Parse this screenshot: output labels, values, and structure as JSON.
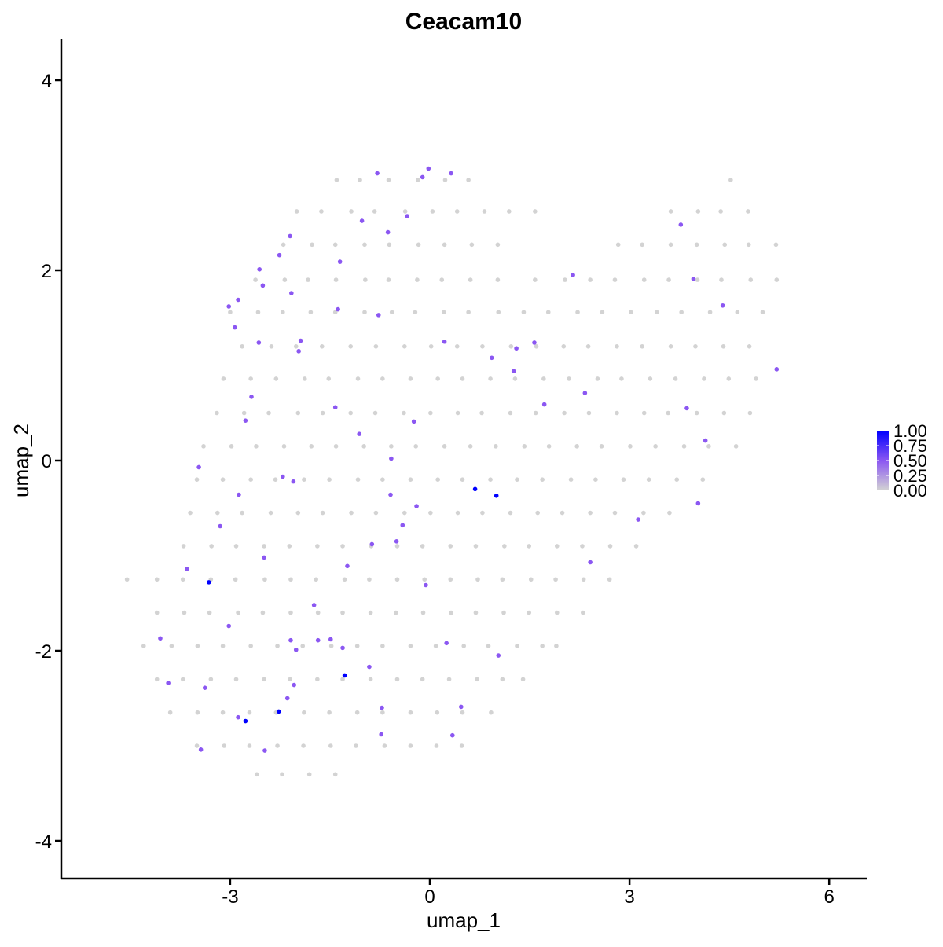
{
  "chart_data": {
    "type": "scatter",
    "title": "Ceacam10",
    "xlabel": "umap_1",
    "ylabel": "umap_2",
    "xlim": [
      -5.4,
      6.7
    ],
    "ylim": [
      -4.4,
      4.4
    ],
    "xticks": [
      -3,
      0,
      3,
      6
    ],
    "yticks": [
      -4,
      -2,
      0,
      2,
      4
    ],
    "grid": false,
    "legend": {
      "placement": "right",
      "type": "colorbar",
      "ticks": [
        "1.00",
        "0.75",
        "0.50",
        "0.25",
        "0.00"
      ],
      "range": [
        0,
        1
      ],
      "low_color": "#d3d3d3",
      "mid_color": "#8b57f2",
      "high_color": "#0000ff"
    },
    "grey_points": [
      {
        "y": 2.95,
        "x": [
          -1.4,
          -1.05,
          -0.62,
          -0.18,
          0.23,
          0.58,
          4.52
        ]
      },
      {
        "y": 2.62,
        "x": [
          -2.0,
          -1.63,
          -1.18,
          -0.83,
          -0.37,
          0.04,
          0.41,
          0.82,
          1.19,
          1.58,
          3.62,
          4.03,
          4.37,
          4.78
        ]
      },
      {
        "y": 2.27,
        "x": [
          -2.2,
          -1.77,
          -1.42,
          -0.98,
          -0.61,
          -0.17,
          0.22,
          0.63,
          1.02,
          2.83,
          3.19,
          3.62,
          4.01,
          4.43,
          4.79,
          5.2
        ]
      },
      {
        "y": 1.9,
        "x": [
          -2.62,
          -2.18,
          -1.83,
          -1.41,
          -0.97,
          -0.62,
          -0.19,
          0.18,
          0.61,
          1.02,
          1.58,
          2.03,
          2.41,
          2.78,
          3.22,
          3.59,
          4.02,
          4.38,
          4.82,
          5.21
        ]
      },
      {
        "y": 1.56,
        "x": [
          -3.0,
          -2.58,
          -2.21,
          -1.79,
          -1.42,
          -0.98,
          -0.57,
          -0.22,
          0.21,
          0.58,
          1.03,
          1.41,
          1.78,
          2.22,
          2.59,
          3.02,
          3.41,
          3.78,
          4.21,
          4.62,
          5.0
        ]
      },
      {
        "y": 1.2,
        "x": [
          -2.82,
          -2.38,
          -2.01,
          -1.62,
          -1.19,
          -0.81,
          -0.38,
          0.02,
          0.41,
          0.79,
          1.22,
          1.6,
          2.01,
          2.38,
          2.81,
          3.19,
          3.62,
          3.99,
          4.41,
          4.8
        ]
      },
      {
        "y": 0.86,
        "x": [
          -3.1,
          -2.69,
          -2.31,
          -1.88,
          -1.52,
          -1.08,
          -0.71,
          -0.29,
          0.12,
          0.49,
          0.91,
          1.28,
          1.71,
          2.09,
          2.52,
          2.88,
          3.31,
          3.69,
          4.12,
          4.49,
          4.9
        ]
      },
      {
        "y": 0.5,
        "x": [
          -3.2,
          -2.79,
          -2.42,
          -1.98,
          -1.61,
          -1.19,
          -0.82,
          -0.39,
          0.01,
          0.42,
          0.78,
          1.21,
          1.59,
          2.02,
          2.39,
          2.81,
          3.22,
          3.58,
          4.01,
          4.42,
          4.81
        ]
      },
      {
        "y": 0.15,
        "x": [
          -3.4,
          -2.98,
          -2.61,
          -2.19,
          -1.78,
          -1.41,
          -0.99,
          -0.58,
          -0.21,
          0.22,
          0.61,
          0.99,
          1.42,
          1.79,
          2.21,
          2.58,
          3.01,
          3.39,
          3.82,
          4.19,
          4.6
        ]
      },
      {
        "y": -0.2,
        "x": [
          -3.5,
          -3.11,
          -2.69,
          -2.32,
          -1.89,
          -1.51,
          -1.08,
          -0.71,
          -0.29,
          0.12,
          0.49,
          0.91,
          1.31,
          1.69,
          2.12,
          2.49,
          2.91,
          3.29,
          3.71,
          4.1
        ]
      },
      {
        "y": -0.55,
        "x": [
          -3.6,
          -3.19,
          -2.82,
          -2.39,
          -1.98,
          -1.61,
          -1.18,
          -0.81,
          -0.38,
          0.01,
          0.42,
          0.79,
          1.21,
          1.62,
          1.99,
          2.41,
          2.78,
          3.21,
          3.6
        ]
      },
      {
        "y": -0.9,
        "x": [
          -3.7,
          -3.28,
          -2.91,
          -2.49,
          -2.11,
          -1.69,
          -1.31,
          -0.88,
          -0.49,
          -0.11,
          0.31,
          0.69,
          1.12,
          1.49,
          1.91,
          2.29,
          2.71,
          3.1
        ]
      },
      {
        "y": -1.25,
        "x": [
          -4.55,
          -4.1,
          -3.71,
          -3.29,
          -2.92,
          -2.48,
          -2.09,
          -1.71,
          -1.28,
          -0.91,
          -0.49,
          -0.08,
          0.31,
          0.72,
          1.09,
          1.52,
          1.89,
          2.31,
          2.7
        ]
      },
      {
        "y": -1.6,
        "x": [
          -4.1,
          -3.69,
          -3.31,
          -2.88,
          -2.51,
          -2.09,
          -1.68,
          -1.31,
          -0.89,
          -0.51,
          -0.1,
          0.32,
          0.69,
          1.11,
          1.49,
          1.91,
          2.3
        ]
      },
      {
        "y": -1.95,
        "x": [
          -4.3,
          -3.88,
          -3.49,
          -3.11,
          -2.69,
          -2.29,
          -1.91,
          -1.48,
          -1.09,
          -0.71,
          -0.29,
          0.09,
          0.51,
          0.88,
          1.31,
          1.69,
          1.9
        ]
      },
      {
        "y": -2.3,
        "x": [
          -4.1,
          -3.71,
          -3.29,
          -2.91,
          -2.49,
          -2.1,
          -1.69,
          -1.31,
          -0.89,
          -0.49,
          -0.11,
          0.29,
          0.71,
          1.09,
          1.4
        ]
      },
      {
        "y": -2.65,
        "x": [
          -3.9,
          -3.49,
          -3.11,
          -2.71,
          -2.31,
          -1.89,
          -1.51,
          -1.09,
          -0.71,
          -0.29,
          0.11,
          0.49,
          0.92
        ]
      },
      {
        "y": -3.0,
        "x": [
          -3.5,
          -3.09,
          -2.71,
          -2.29,
          -1.9,
          -1.49,
          -1.11,
          -0.68,
          -0.29,
          0.1,
          0.48
        ]
      },
      {
        "y": -3.3,
        "x": [
          -2.6,
          -2.22,
          -1.81,
          -1.42
        ]
      }
    ],
    "expressing_points": [
      [
        0.68,
        -0.3,
        1
      ],
      [
        1.0,
        -0.37,
        1
      ],
      [
        -3.32,
        -1.28,
        1
      ],
      [
        -1.28,
        -2.26,
        1
      ],
      [
        -2.77,
        -2.74,
        1
      ],
      [
        -2.27,
        -2.64,
        1
      ],
      [
        -0.79,
        3.02,
        0.5
      ],
      [
        -0.02,
        3.07,
        0.5
      ],
      [
        0.32,
        3.02,
        0.5
      ],
      [
        -0.11,
        2.98,
        0.5
      ],
      [
        -1.02,
        2.52,
        0.5
      ],
      [
        -0.34,
        2.57,
        0.5
      ],
      [
        -0.63,
        2.4,
        0.5
      ],
      [
        -2.1,
        2.36,
        0.5
      ],
      [
        -2.26,
        2.16,
        0.5
      ],
      [
        -1.35,
        2.09,
        0.5
      ],
      [
        -2.56,
        2.01,
        0.5
      ],
      [
        -2.51,
        1.84,
        0.5
      ],
      [
        -2.08,
        1.76,
        0.5
      ],
      [
        -2.88,
        1.69,
        0.5
      ],
      [
        -3.02,
        1.62,
        0.5
      ],
      [
        -2.93,
        1.4,
        0.5
      ],
      [
        -1.38,
        1.59,
        0.5
      ],
      [
        -0.77,
        1.53,
        0.5
      ],
      [
        -2.57,
        1.24,
        0.5
      ],
      [
        -1.94,
        1.26,
        0.5
      ],
      [
        -1.97,
        1.15,
        0.5
      ],
      [
        0.22,
        1.25,
        0.5
      ],
      [
        -2.68,
        0.67,
        0.5
      ],
      [
        -1.42,
        0.56,
        0.5
      ],
      [
        -2.77,
        0.42,
        0.5
      ],
      [
        -1.06,
        0.28,
        0.5
      ],
      [
        -0.24,
        0.41,
        0.5
      ],
      [
        -3.47,
        -0.07,
        0.5
      ],
      [
        -0.58,
        0.02,
        0.5
      ],
      [
        -2.87,
        -0.36,
        0.5
      ],
      [
        -2.21,
        -0.17,
        0.5
      ],
      [
        -2.05,
        -0.22,
        0.5
      ],
      [
        -0.59,
        -0.36,
        0.5
      ],
      [
        -3.15,
        -0.69,
        0.5
      ],
      [
        -0.41,
        -0.68,
        0.5
      ],
      [
        -0.2,
        -0.48,
        0.5
      ],
      [
        -0.5,
        -0.85,
        0.5
      ],
      [
        -0.87,
        -0.88,
        0.5
      ],
      [
        -1.24,
        -1.11,
        0.5
      ],
      [
        -2.49,
        -1.02,
        0.5
      ],
      [
        -3.65,
        -1.14,
        0.5
      ],
      [
        -0.06,
        -1.31,
        0.5
      ],
      [
        -1.74,
        -1.52,
        0.5
      ],
      [
        -3.02,
        -1.74,
        0.5
      ],
      [
        -4.05,
        -1.87,
        0.5
      ],
      [
        -2.09,
        -1.89,
        0.5
      ],
      [
        -2.01,
        -1.99,
        0.5
      ],
      [
        -1.68,
        -1.89,
        0.5
      ],
      [
        -1.49,
        -1.88,
        0.5
      ],
      [
        -1.31,
        -1.97,
        0.5
      ],
      [
        -0.91,
        -2.17,
        0.5
      ],
      [
        -3.93,
        -2.34,
        0.5
      ],
      [
        -3.38,
        -2.39,
        0.5
      ],
      [
        -2.04,
        -2.36,
        0.5
      ],
      [
        -2.14,
        -2.5,
        0.5
      ],
      [
        -0.72,
        -2.6,
        0.5
      ],
      [
        -0.73,
        -2.88,
        0.5
      ],
      [
        0.34,
        -2.89,
        0.5
      ],
      [
        0.47,
        -2.59,
        0.5
      ],
      [
        0.25,
        -1.92,
        0.5
      ],
      [
        1.03,
        -2.05,
        0.5
      ],
      [
        -3.44,
        -3.04,
        0.5
      ],
      [
        -2.48,
        -3.05,
        0.5
      ],
      [
        -2.88,
        -2.7,
        0.5
      ],
      [
        2.15,
        1.95,
        0.5
      ],
      [
        1.57,
        1.24,
        0.5
      ],
      [
        1.3,
        1.18,
        0.5
      ],
      [
        0.93,
        1.08,
        0.5
      ],
      [
        1.26,
        0.94,
        0.5
      ],
      [
        2.33,
        0.71,
        0.5
      ],
      [
        1.72,
        0.59,
        0.5
      ],
      [
        3.77,
        2.48,
        0.5
      ],
      [
        3.96,
        1.91,
        0.5
      ],
      [
        4.4,
        1.63,
        0.5
      ],
      [
        3.86,
        0.55,
        0.5
      ],
      [
        4.14,
        0.21,
        0.5
      ],
      [
        5.21,
        0.96,
        0.5
      ],
      [
        3.13,
        -0.62,
        0.5
      ],
      [
        4.03,
        -0.45,
        0.5
      ],
      [
        2.41,
        -1.07,
        0.5
      ]
    ]
  }
}
